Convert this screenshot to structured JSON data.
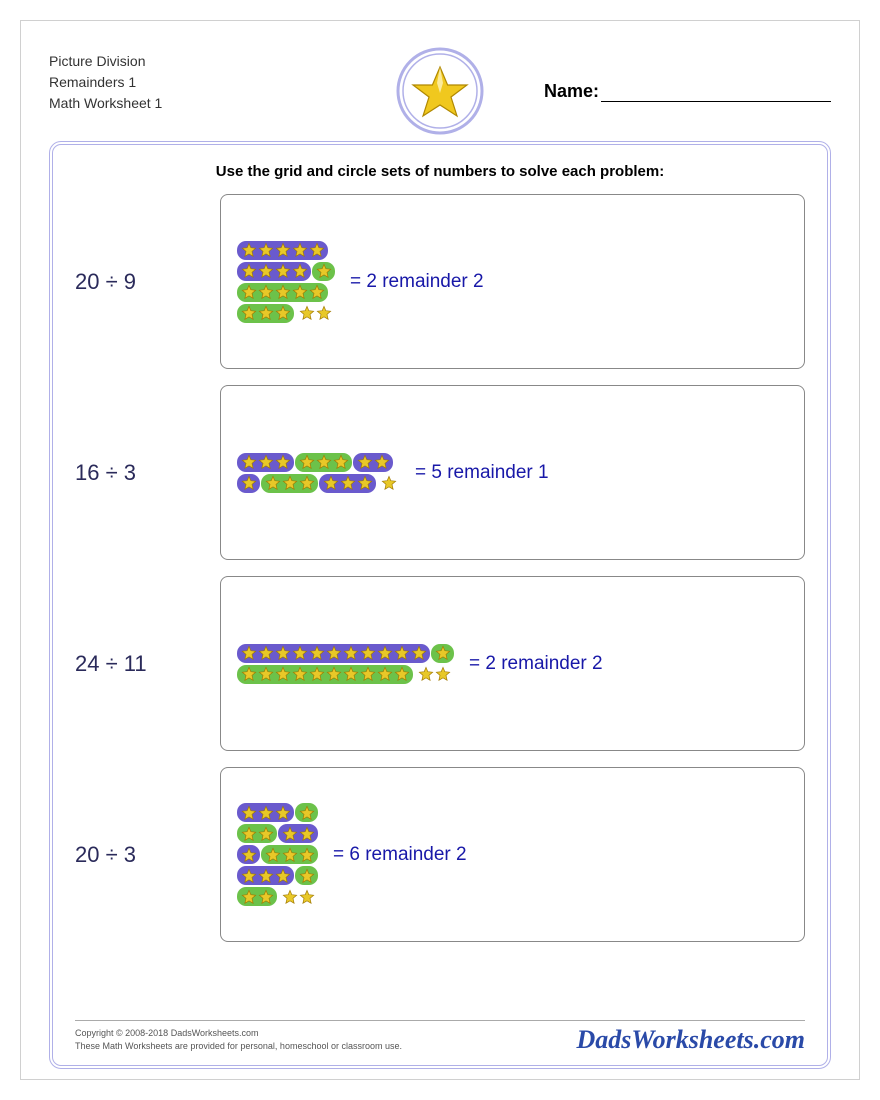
{
  "header": {
    "title_line1": "Picture Division",
    "title_line2": "Remainders 1",
    "title_line3": "Math Worksheet 1",
    "name_label": "Name:"
  },
  "instructions": "Use the grid and circle sets of numbers to solve each problem:",
  "colors": {
    "group_a": "#6a5acd",
    "group_b": "#6cc24a",
    "remainder": "transparent",
    "star_fill": "#e8c828",
    "star_stroke": "#a07800",
    "answer_text": "#1818a8",
    "problem_text": "#2a2a5a",
    "frame_border": "#b0b0e8"
  },
  "problems": [
    {
      "expression": "20 ÷ 9",
      "answer": "= 2 remainder 2",
      "rows": [
        [
          {
            "n": 5,
            "c": "a"
          }
        ],
        [
          {
            "n": 4,
            "c": "a"
          },
          {
            "n": 1,
            "c": "b"
          }
        ],
        [
          {
            "n": 5,
            "c": "b"
          }
        ],
        [
          {
            "n": 3,
            "c": "b"
          },
          {
            "n": 2,
            "c": "r"
          }
        ]
      ]
    },
    {
      "expression": "16 ÷ 3",
      "answer": "= 5 remainder 1",
      "rows": [
        [
          {
            "n": 3,
            "c": "a"
          },
          {
            "n": 3,
            "c": "b"
          },
          {
            "n": 2,
            "c": "a"
          }
        ],
        [
          {
            "n": 1,
            "c": "a"
          },
          {
            "n": 3,
            "c": "b"
          },
          {
            "n": 3,
            "c": "a"
          },
          {
            "n": 1,
            "c": "r"
          }
        ]
      ]
    },
    {
      "expression": "24 ÷ 11",
      "answer": "= 2 remainder 2",
      "rows": [
        [
          {
            "n": 11,
            "c": "a"
          },
          {
            "n": 1,
            "c": "b"
          }
        ],
        [
          {
            "n": 10,
            "c": "b"
          },
          {
            "n": 2,
            "c": "r"
          }
        ]
      ]
    },
    {
      "expression": "20 ÷ 3",
      "answer": "= 6 remainder 2",
      "rows": [
        [
          {
            "n": 3,
            "c": "a"
          },
          {
            "n": 1,
            "c": "b"
          }
        ],
        [
          {
            "n": 2,
            "c": "b"
          },
          {
            "n": 2,
            "c": "a"
          }
        ],
        [
          {
            "n": 1,
            "c": "a"
          },
          {
            "n": 3,
            "c": "b"
          }
        ],
        [
          {
            "n": 3,
            "c": "a"
          },
          {
            "n": 1,
            "c": "b"
          }
        ],
        [
          {
            "n": 2,
            "c": "b"
          },
          {
            "n": 2,
            "c": "r"
          }
        ]
      ]
    }
  ],
  "footer": {
    "copyright": "Copyright © 2008-2018 DadsWorksheets.com",
    "note": "These Math Worksheets are provided for personal, homeschool or classroom use.",
    "logo": "DadsWorksheets.com"
  }
}
